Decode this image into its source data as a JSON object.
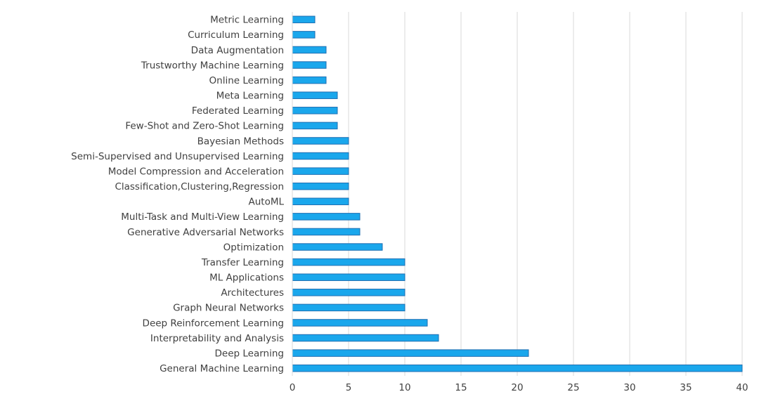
{
  "chart_data": {
    "type": "bar",
    "orientation": "horizontal",
    "categories": [
      "Metric Learning",
      "Curriculum Learning",
      "Data Augmentation",
      "Trustworthy Machine Learning",
      "Online Learning",
      "Meta Learning",
      "Federated Learning",
      "Few-Shot and Zero-Shot Learning",
      "Bayesian Methods",
      "Semi-Supervised and Unsupervised Learning",
      "Model Compression and Acceleration",
      "Classification,Clustering,Regression",
      "AutoML",
      "Multi-Task and Multi-View Learning",
      "Generative Adversarial Networks",
      "Optimization",
      "Transfer Learning",
      "ML Applications",
      "Architectures",
      "Graph Neural Networks",
      "Deep Reinforcement Learning",
      "Interpretability and Analysis",
      "Deep Learning",
      "General Machine Learning"
    ],
    "values": [
      2,
      2,
      3,
      3,
      3,
      4,
      4,
      4,
      5,
      5,
      5,
      5,
      5,
      6,
      6,
      8,
      10,
      10,
      10,
      10,
      12,
      13,
      21,
      40
    ],
    "x_ticks": [
      "0",
      "5",
      "10",
      "15",
      "20",
      "25",
      "30",
      "35",
      "40"
    ],
    "xlim": [
      0,
      40
    ],
    "title": "",
    "xlabel": "",
    "ylabel": "",
    "grid": "vertical",
    "legend": "none",
    "bar_color": "#1aa7ec",
    "bar_edge_color": "#1f6fb2"
  }
}
